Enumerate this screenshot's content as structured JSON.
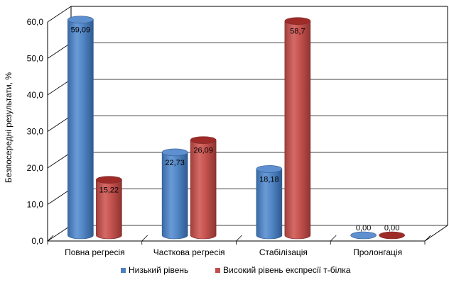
{
  "chart_data": {
    "type": "bar",
    "style": "3d-cylinder",
    "title": "",
    "xlabel": "",
    "ylabel": "Безпосередні результати, %",
    "ylim": [
      0,
      60
    ],
    "y_ticks": [
      "0,0",
      "10,0",
      "20,0",
      "30,0",
      "40,0",
      "50,0",
      "60,0"
    ],
    "grid": true,
    "legend_position": "bottom",
    "categories": [
      "Повна регресія",
      "Часткова регресія",
      "Стабілізація",
      "Пролонгація"
    ],
    "series": [
      {
        "name": "Низький рівень",
        "color": "#4f81bd",
        "values": [
          59.09,
          22.73,
          18.18,
          0.0
        ],
        "labels": [
          "59,09",
          "22,73",
          "18,18",
          "0,00"
        ]
      },
      {
        "name": "Високий рівень експресії т-білка",
        "color": "#c0504d",
        "values": [
          15.22,
          26.09,
          58.7,
          0.0
        ],
        "labels": [
          "15,22",
          "26,09",
          "58,7",
          "0,00"
        ]
      }
    ]
  }
}
